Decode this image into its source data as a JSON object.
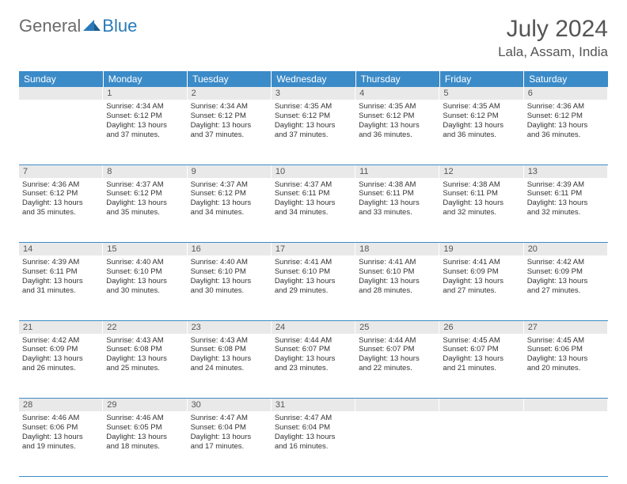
{
  "brand": {
    "general": "General",
    "blue": "Blue"
  },
  "title": "July 2024",
  "location": "Lala, Assam, India",
  "colors": {
    "header_bg": "#3b8bc8",
    "header_text": "#ffffff",
    "daynum_bg": "#e9e9e9",
    "daynum_text": "#555555",
    "border": "#3b8bc8",
    "body_text": "#333333",
    "logo_gray": "#6b6b6b",
    "logo_blue": "#2a7ab9"
  },
  "dow": [
    "Sunday",
    "Monday",
    "Tuesday",
    "Wednesday",
    "Thursday",
    "Friday",
    "Saturday"
  ],
  "weeks": [
    [
      null,
      {
        "d": "1",
        "sr": "Sunrise: 4:34 AM",
        "ss": "Sunset: 6:12 PM",
        "dl1": "Daylight: 13 hours",
        "dl2": "and 37 minutes."
      },
      {
        "d": "2",
        "sr": "Sunrise: 4:34 AM",
        "ss": "Sunset: 6:12 PM",
        "dl1": "Daylight: 13 hours",
        "dl2": "and 37 minutes."
      },
      {
        "d": "3",
        "sr": "Sunrise: 4:35 AM",
        "ss": "Sunset: 6:12 PM",
        "dl1": "Daylight: 13 hours",
        "dl2": "and 37 minutes."
      },
      {
        "d": "4",
        "sr": "Sunrise: 4:35 AM",
        "ss": "Sunset: 6:12 PM",
        "dl1": "Daylight: 13 hours",
        "dl2": "and 36 minutes."
      },
      {
        "d": "5",
        "sr": "Sunrise: 4:35 AM",
        "ss": "Sunset: 6:12 PM",
        "dl1": "Daylight: 13 hours",
        "dl2": "and 36 minutes."
      },
      {
        "d": "6",
        "sr": "Sunrise: 4:36 AM",
        "ss": "Sunset: 6:12 PM",
        "dl1": "Daylight: 13 hours",
        "dl2": "and 36 minutes."
      }
    ],
    [
      {
        "d": "7",
        "sr": "Sunrise: 4:36 AM",
        "ss": "Sunset: 6:12 PM",
        "dl1": "Daylight: 13 hours",
        "dl2": "and 35 minutes."
      },
      {
        "d": "8",
        "sr": "Sunrise: 4:37 AM",
        "ss": "Sunset: 6:12 PM",
        "dl1": "Daylight: 13 hours",
        "dl2": "and 35 minutes."
      },
      {
        "d": "9",
        "sr": "Sunrise: 4:37 AM",
        "ss": "Sunset: 6:12 PM",
        "dl1": "Daylight: 13 hours",
        "dl2": "and 34 minutes."
      },
      {
        "d": "10",
        "sr": "Sunrise: 4:37 AM",
        "ss": "Sunset: 6:11 PM",
        "dl1": "Daylight: 13 hours",
        "dl2": "and 34 minutes."
      },
      {
        "d": "11",
        "sr": "Sunrise: 4:38 AM",
        "ss": "Sunset: 6:11 PM",
        "dl1": "Daylight: 13 hours",
        "dl2": "and 33 minutes."
      },
      {
        "d": "12",
        "sr": "Sunrise: 4:38 AM",
        "ss": "Sunset: 6:11 PM",
        "dl1": "Daylight: 13 hours",
        "dl2": "and 32 minutes."
      },
      {
        "d": "13",
        "sr": "Sunrise: 4:39 AM",
        "ss": "Sunset: 6:11 PM",
        "dl1": "Daylight: 13 hours",
        "dl2": "and 32 minutes."
      }
    ],
    [
      {
        "d": "14",
        "sr": "Sunrise: 4:39 AM",
        "ss": "Sunset: 6:11 PM",
        "dl1": "Daylight: 13 hours",
        "dl2": "and 31 minutes."
      },
      {
        "d": "15",
        "sr": "Sunrise: 4:40 AM",
        "ss": "Sunset: 6:10 PM",
        "dl1": "Daylight: 13 hours",
        "dl2": "and 30 minutes."
      },
      {
        "d": "16",
        "sr": "Sunrise: 4:40 AM",
        "ss": "Sunset: 6:10 PM",
        "dl1": "Daylight: 13 hours",
        "dl2": "and 30 minutes."
      },
      {
        "d": "17",
        "sr": "Sunrise: 4:41 AM",
        "ss": "Sunset: 6:10 PM",
        "dl1": "Daylight: 13 hours",
        "dl2": "and 29 minutes."
      },
      {
        "d": "18",
        "sr": "Sunrise: 4:41 AM",
        "ss": "Sunset: 6:10 PM",
        "dl1": "Daylight: 13 hours",
        "dl2": "and 28 minutes."
      },
      {
        "d": "19",
        "sr": "Sunrise: 4:41 AM",
        "ss": "Sunset: 6:09 PM",
        "dl1": "Daylight: 13 hours",
        "dl2": "and 27 minutes."
      },
      {
        "d": "20",
        "sr": "Sunrise: 4:42 AM",
        "ss": "Sunset: 6:09 PM",
        "dl1": "Daylight: 13 hours",
        "dl2": "and 27 minutes."
      }
    ],
    [
      {
        "d": "21",
        "sr": "Sunrise: 4:42 AM",
        "ss": "Sunset: 6:09 PM",
        "dl1": "Daylight: 13 hours",
        "dl2": "and 26 minutes."
      },
      {
        "d": "22",
        "sr": "Sunrise: 4:43 AM",
        "ss": "Sunset: 6:08 PM",
        "dl1": "Daylight: 13 hours",
        "dl2": "and 25 minutes."
      },
      {
        "d": "23",
        "sr": "Sunrise: 4:43 AM",
        "ss": "Sunset: 6:08 PM",
        "dl1": "Daylight: 13 hours",
        "dl2": "and 24 minutes."
      },
      {
        "d": "24",
        "sr": "Sunrise: 4:44 AM",
        "ss": "Sunset: 6:07 PM",
        "dl1": "Daylight: 13 hours",
        "dl2": "and 23 minutes."
      },
      {
        "d": "25",
        "sr": "Sunrise: 4:44 AM",
        "ss": "Sunset: 6:07 PM",
        "dl1": "Daylight: 13 hours",
        "dl2": "and 22 minutes."
      },
      {
        "d": "26",
        "sr": "Sunrise: 4:45 AM",
        "ss": "Sunset: 6:07 PM",
        "dl1": "Daylight: 13 hours",
        "dl2": "and 21 minutes."
      },
      {
        "d": "27",
        "sr": "Sunrise: 4:45 AM",
        "ss": "Sunset: 6:06 PM",
        "dl1": "Daylight: 13 hours",
        "dl2": "and 20 minutes."
      }
    ],
    [
      {
        "d": "28",
        "sr": "Sunrise: 4:46 AM",
        "ss": "Sunset: 6:06 PM",
        "dl1": "Daylight: 13 hours",
        "dl2": "and 19 minutes."
      },
      {
        "d": "29",
        "sr": "Sunrise: 4:46 AM",
        "ss": "Sunset: 6:05 PM",
        "dl1": "Daylight: 13 hours",
        "dl2": "and 18 minutes."
      },
      {
        "d": "30",
        "sr": "Sunrise: 4:47 AM",
        "ss": "Sunset: 6:04 PM",
        "dl1": "Daylight: 13 hours",
        "dl2": "and 17 minutes."
      },
      {
        "d": "31",
        "sr": "Sunrise: 4:47 AM",
        "ss": "Sunset: 6:04 PM",
        "dl1": "Daylight: 13 hours",
        "dl2": "and 16 minutes."
      },
      null,
      null,
      null
    ]
  ]
}
